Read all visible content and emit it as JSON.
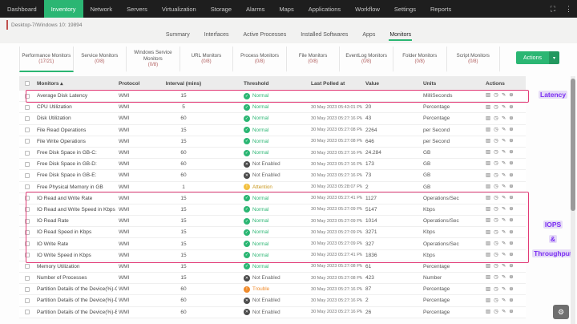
{
  "colors": {
    "accent_green": "#2bb673",
    "highlight_pink": "#e23c77",
    "annotation_purple": "#7b2ff2",
    "nav_black": "#1e1e1e"
  },
  "nav": {
    "items": [
      "Dashboard",
      "Inventory",
      "Network",
      "Servers",
      "Virtualization",
      "Storage",
      "Alarms",
      "Maps",
      "Applications",
      "Workflow",
      "Settings",
      "Reports"
    ],
    "active": "Inventory",
    "expand_icon": "⛶",
    "kebab_icon": "⋮"
  },
  "breadcrumb": {
    "device": "Desktop-7/Windows 10: 19894"
  },
  "page_tabs": {
    "items": [
      "Summary",
      "Interfaces",
      "Active Processes",
      "Installed Softwares",
      "Apps",
      "Monitors"
    ],
    "active": "Monitors"
  },
  "monitor_tabs": {
    "active": "Performance Monitors",
    "items": [
      {
        "label": "Performance Monitors",
        "count": "(17/21)"
      },
      {
        "label": "Service Monitors",
        "count": "(0/8)"
      },
      {
        "label": "Windows Service Monitors",
        "count": "(0/8)"
      },
      {
        "label": "URL Monitors",
        "count": "(0/8)"
      },
      {
        "label": "Process Monitors",
        "count": "(0/8)"
      },
      {
        "label": "File Monitors",
        "count": "(0/8)"
      },
      {
        "label": "EventLog Monitors",
        "count": "(0/8)"
      },
      {
        "label": "Folder Monitors",
        "count": "(0/8)"
      },
      {
        "label": "Script Monitors",
        "count": "(0/8)"
      }
    ]
  },
  "actions_button": {
    "label": "Actions",
    "caret": "▾"
  },
  "table": {
    "columns": {
      "monitors": "Monitors",
      "sort_icon": "▴",
      "protocol": "Protocol",
      "interval": "Interval (mins)",
      "threshold": "Threshold",
      "last_polled": "Last Polled at",
      "value": "Value",
      "units": "Units",
      "actions": "Actions"
    },
    "statuses": {
      "normal": {
        "label": "Normal",
        "glyph": "✓"
      },
      "not_enabled": {
        "label": "Not Enabled",
        "glyph": "✕"
      },
      "attention": {
        "label": "Attention",
        "glyph": "!"
      },
      "trouble": {
        "label": "Trouble",
        "glyph": "!"
      }
    },
    "action_icons": [
      {
        "name": "graph-icon",
        "glyph": "▥"
      },
      {
        "name": "history-icon",
        "glyph": "◷"
      },
      {
        "name": "edit-icon",
        "glyph": "✎"
      },
      {
        "name": "delete-icon",
        "glyph": "⊕"
      }
    ],
    "rows": [
      {
        "name": "Average Disk Latency",
        "protocol": "WMI",
        "interval": "15",
        "status": "normal",
        "polled": "",
        "value": "",
        "units": "MilliSeconds"
      },
      {
        "name": "CPU Utilization",
        "protocol": "WMI",
        "interval": "5",
        "status": "normal",
        "polled": "30 May 2023 05:43:01 PM IST",
        "value": "20",
        "units": "Percentage"
      },
      {
        "name": "Disk Utilization",
        "protocol": "WMI",
        "interval": "60",
        "status": "normal",
        "polled": "30 May 2023 05:27:16 PM IST",
        "value": "43",
        "units": "Percentage"
      },
      {
        "name": "File Read Operations",
        "protocol": "WMI",
        "interval": "15",
        "status": "normal",
        "polled": "30 May 2023 05:27:08 PM IST",
        "value": "2264",
        "units": "per Second"
      },
      {
        "name": "File Write Operations",
        "protocol": "WMI",
        "interval": "15",
        "status": "normal",
        "polled": "30 May 2023 05:27:08 PM IST",
        "value": "646",
        "units": "per Second"
      },
      {
        "name": "Free Disk Space in GB-C:",
        "protocol": "WMI",
        "interval": "60",
        "status": "normal",
        "polled": "30 May 2023 05:27:16 PM IST",
        "value": "24.284",
        "units": "GB"
      },
      {
        "name": "Free Disk Space in GB-D:",
        "protocol": "WMI",
        "interval": "60",
        "status": "not_enabled",
        "polled": "30 May 2023 05:27:16 PM IST",
        "value": "173",
        "units": "GB"
      },
      {
        "name": "Free Disk Space in GB-E:",
        "protocol": "WMI",
        "interval": "60",
        "status": "not_enabled",
        "polled": "30 May 2023 05:27:16 PM IST",
        "value": "73",
        "units": "GB"
      },
      {
        "name": "Free Physical Memory in GB",
        "protocol": "WMI",
        "interval": "1",
        "status": "attention",
        "polled": "30 May 2023 05:28:07 PM IST",
        "value": "2",
        "units": "GB"
      },
      {
        "name": "IO Read and Write Rate",
        "protocol": "WMI",
        "interval": "15",
        "status": "normal",
        "polled": "30 May 2023 05:27:41 PM IST",
        "value": "1127",
        "units": "Operations/Sec"
      },
      {
        "name": "IO Read and Write Speed in Kbps",
        "protocol": "WMI",
        "interval": "15",
        "status": "normal",
        "polled": "30 May 2023 05:27:09 PM IST",
        "value": "5147",
        "units": "Kbps"
      },
      {
        "name": "IO Read Rate",
        "protocol": "WMI",
        "interval": "15",
        "status": "normal",
        "polled": "30 May 2023 05:27:09 PM IST",
        "value": "1014",
        "units": "Operations/Sec"
      },
      {
        "name": "IO Read Speed in Kbps",
        "protocol": "WMI",
        "interval": "15",
        "status": "normal",
        "polled": "30 May 2023 05:27:09 PM IST",
        "value": "3271",
        "units": "Kbps"
      },
      {
        "name": "IO Write Rate",
        "protocol": "WMI",
        "interval": "15",
        "status": "normal",
        "polled": "30 May 2023 05:27:09 PM IST",
        "value": "327",
        "units": "Operations/Sec"
      },
      {
        "name": "IO Write Speed in Kbps",
        "protocol": "WMI",
        "interval": "15",
        "status": "normal",
        "polled": "30 May 2023 05:27:41 PM IST",
        "value": "1836",
        "units": "Kbps"
      },
      {
        "name": "Memory Utilization",
        "protocol": "WMI",
        "interval": "15",
        "status": "normal",
        "polled": "30 May 2023 05:27:08 PM IST",
        "value": "61",
        "units": "Percentage"
      },
      {
        "name": "Number of Processes",
        "protocol": "WMI",
        "interval": "15",
        "status": "not_enabled",
        "polled": "30 May 2023 05:27:08 PM IST",
        "value": "423",
        "units": "Number"
      },
      {
        "name": "Partition Details of the Device(%)-C:",
        "protocol": "WMI",
        "interval": "60",
        "status": "trouble",
        "polled": "30 May 2023 05:27:16 PM IST",
        "value": "87",
        "units": "Percentage"
      },
      {
        "name": "Partition Details of the Device(%)-D:",
        "protocol": "WMI",
        "interval": "60",
        "status": "not_enabled",
        "polled": "30 May 2023 05:27:16 PM IST",
        "value": "2",
        "units": "Percentage"
      },
      {
        "name": "Partition Details of the Device(%)-E:",
        "protocol": "WMI",
        "interval": "60",
        "status": "not_enabled",
        "polled": "30 May 2023 05:27:16 PM IST",
        "value": "26",
        "units": "Percentage"
      }
    ]
  },
  "annotations": {
    "latency": "Latency",
    "iops_lines": [
      "IOPS",
      "&",
      "Throughput"
    ]
  }
}
